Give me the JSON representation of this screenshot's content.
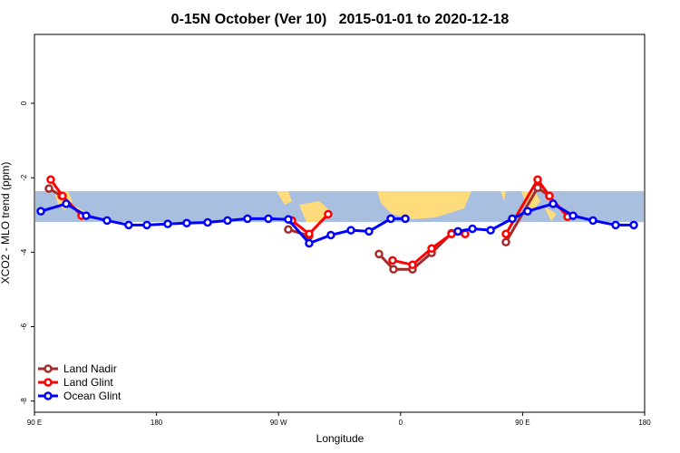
{
  "chart_data": {
    "type": "line",
    "title": "0-15N October (Ver 10)   2015-01-01 to 2020-12-18",
    "xlabel": "Longitude",
    "ylabel": "XCO2 - MLO trend (ppm)",
    "xlim": [
      90,
      540
    ],
    "ylim": [
      -8.3,
      1.85
    ],
    "xticks": [
      {
        "value": 90,
        "label": "90 E"
      },
      180,
      {
        "value": 270,
        "label": "90 W"
      },
      0,
      {
        "value": 450,
        "label": "90 E"
      },
      180
    ],
    "yticks": [
      0,
      -2,
      -4,
      -6,
      -8
    ],
    "legend": "bottom-left",
    "series": [
      {
        "name": "Land Nadir",
        "color": "#a52a2a",
        "x": [
          100.7,
          110.1,
          null,
          277.2,
          292.6,
          null,
          344.1,
          354.8,
          368.8,
          382.9,
          397.6,
          null,
          437.7,
          461.1,
          469.8
        ],
        "values": [
          -2.29,
          -2.49,
          null,
          -3.39,
          -3.56,
          null,
          -4.05,
          -4.46,
          -4.46,
          -4.02,
          -3.49,
          null,
          -3.73,
          -2.27,
          -2.49
        ]
      },
      {
        "name": "Land Glint",
        "color": "#ff0000",
        "x": [
          102.0,
          110.7,
          124.8,
          null,
          279.9,
          292.6,
          306.6,
          null,
          354.1,
          368.8,
          382.9,
          397.6,
          407.6,
          null,
          437.7,
          461.1,
          469.8,
          483.2
        ],
        "values": [
          -2.05,
          -2.49,
          -3.02,
          null,
          -3.15,
          -3.51,
          -2.98,
          null,
          -4.22,
          -4.34,
          -3.9,
          -3.51,
          -3.51,
          null,
          -3.51,
          -2.05,
          -2.49,
          -3.05
        ]
      },
      {
        "name": "Ocean Glint",
        "color": "#0000ff",
        "x": [
          94.7,
          113.4,
          128.1,
          143.5,
          159.5,
          172.9,
          188.3,
          202.3,
          217.7,
          232.4,
          247.1,
          262.5,
          277.2,
          292.6,
          308.6,
          323.4,
          336.7,
          352.8,
          363.5,
          null,
          402.3,
          413.0,
          426.4,
          442.4,
          453.7,
          472.5,
          487.2,
          501.9,
          518.6,
          532.0
        ],
        "values": [
          -2.9,
          -2.7,
          -3.02,
          -3.15,
          -3.27,
          -3.27,
          -3.24,
          -3.22,
          -3.2,
          -3.15,
          -3.1,
          -3.1,
          -3.12,
          -3.76,
          -3.54,
          -3.41,
          -3.44,
          -3.1,
          -3.1,
          null,
          -3.44,
          -3.37,
          -3.41,
          -3.1,
          -2.9,
          -2.7,
          -3.02,
          -3.15,
          -3.27,
          -3.27
        ]
      }
    ]
  }
}
